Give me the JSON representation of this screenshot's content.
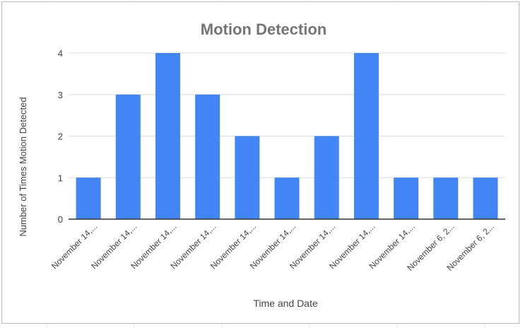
{
  "chart_data": {
    "type": "bar",
    "title": "Motion Detection",
    "xlabel": "Time and Date",
    "ylabel": "Number of Times Motion Detected",
    "categories": [
      "November 14,...",
      "November 14,...",
      "November 14,...",
      "November 14,...",
      "November 14,...",
      "November 14,...",
      "November 14,...",
      "November 14,...",
      "November 14,...",
      "November 6, 2...",
      "November 6, 2..."
    ],
    "values": [
      1,
      3,
      4,
      3,
      2,
      1,
      2,
      4,
      1,
      1,
      1
    ],
    "ylim": [
      0,
      4
    ],
    "yticks": [
      0,
      1,
      2,
      3,
      4
    ],
    "grid": true,
    "legend": "none",
    "colors": {
      "bar": "#4285f4",
      "title": "#757575",
      "axis_text": "#444444",
      "gridline": "#dddddd",
      "baseline": "#333333"
    }
  }
}
